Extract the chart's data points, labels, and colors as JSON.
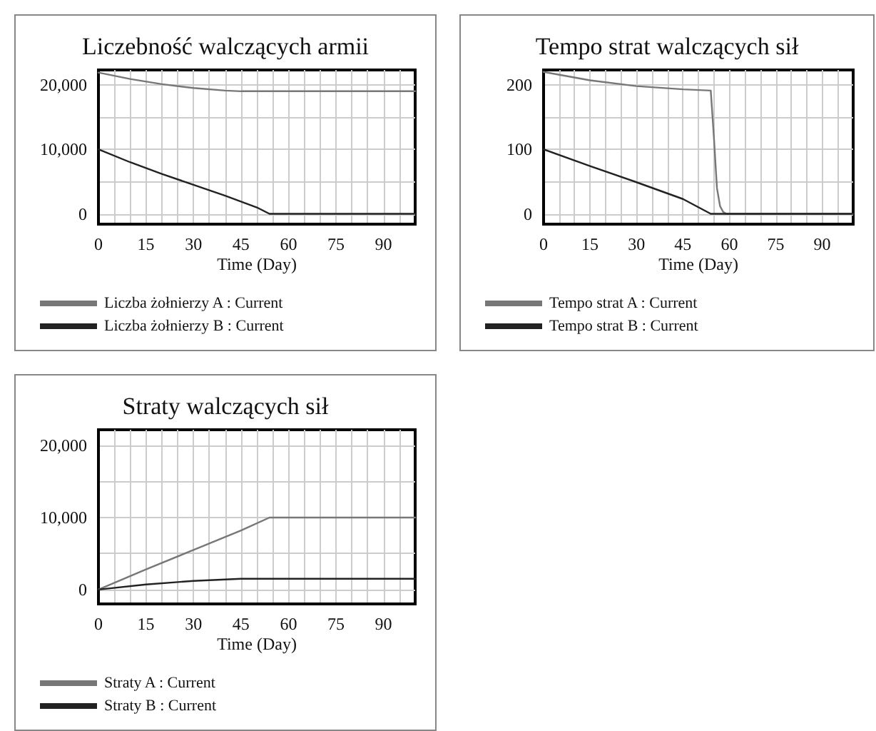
{
  "chart_data": [
    {
      "type": "line",
      "title": "Liczebność walczących armii",
      "xlabel": "Time (Day)",
      "xlim": [
        0,
        100
      ],
      "xticks": [
        0,
        {
          "value": 5,
          "label": null
        },
        {
          "value": 10,
          "label": null
        },
        15,
        {
          "value": 20,
          "label": null
        },
        {
          "value": 25,
          "label": null
        },
        30,
        {
          "value": 35,
          "label": null
        },
        {
          "value": 40,
          "label": null
        },
        45,
        {
          "value": 50,
          "label": null
        },
        {
          "value": 55,
          "label": null
        },
        60,
        {
          "value": 65,
          "label": null
        },
        {
          "value": 70,
          "label": null
        },
        75,
        {
          "value": 80,
          "label": null
        },
        {
          "value": 85,
          "label": null
        },
        90,
        {
          "value": 95,
          "label": null
        }
      ],
      "ylim": [
        -1600,
        22300
      ],
      "yticks": [
        0,
        {
          "value": 5000,
          "label": null
        },
        {
          "value": 10000,
          "label": "10,000"
        },
        {
          "value": 15000,
          "label": null
        },
        {
          "value": 20000,
          "label": "20,000"
        }
      ],
      "grid": true,
      "legend": "bottom",
      "marker": "none",
      "line_style": "solid",
      "series": [
        {
          "name": "Liczba żołnierzy A : Current",
          "color": "#777777",
          "x": [
            0,
            10,
            20,
            30,
            40,
            45,
            100
          ],
          "values": [
            21900,
            20900,
            20100,
            19500,
            19100,
            19000,
            19000
          ]
        },
        {
          "name": "Liczba żołnierzy B : Current",
          "color": "#222222",
          "x": [
            0,
            10,
            20,
            30,
            40,
            50,
            54,
            100
          ],
          "values": [
            10000,
            8000,
            6200,
            4500,
            2800,
            1000,
            0,
            0
          ]
        }
      ]
    },
    {
      "type": "line",
      "title": "Tempo strat walczących sił",
      "xlabel": "Time (Day)",
      "xlim": [
        0,
        100
      ],
      "xticks": [
        0,
        {
          "value": 5,
          "label": null
        },
        {
          "value": 10,
          "label": null
        },
        15,
        {
          "value": 20,
          "label": null
        },
        {
          "value": 25,
          "label": null
        },
        30,
        {
          "value": 35,
          "label": null
        },
        {
          "value": 40,
          "label": null
        },
        45,
        {
          "value": 50,
          "label": null
        },
        {
          "value": 55,
          "label": null
        },
        60,
        {
          "value": 65,
          "label": null
        },
        {
          "value": 70,
          "label": null
        },
        75,
        {
          "value": 80,
          "label": null
        },
        {
          "value": 85,
          "label": null
        },
        90,
        {
          "value": 95,
          "label": null
        }
      ],
      "ylim": [
        -16,
        223
      ],
      "yticks": [
        0,
        {
          "value": 50,
          "label": null
        },
        100,
        {
          "value": 150,
          "label": null
        },
        200
      ],
      "grid": true,
      "legend": "bottom",
      "marker": "none",
      "line_style": "solid",
      "series": [
        {
          "name": "Tempo strat A : Current",
          "color": "#777777",
          "x": [
            0,
            15,
            30,
            45,
            54,
            55,
            56,
            57,
            58,
            59,
            100
          ],
          "values": [
            220,
            207,
            198,
            193,
            191,
            120,
            40,
            12,
            3,
            0,
            0
          ]
        },
        {
          "name": "Tempo strat B : Current",
          "color": "#222222",
          "x": [
            0,
            15,
            30,
            45,
            54,
            100
          ],
          "values": [
            100,
            74,
            49,
            23,
            0,
            0
          ]
        }
      ]
    },
    {
      "type": "line",
      "title": "Straty walczących sił",
      "xlabel": "Time (Day)",
      "xlim": [
        0,
        100
      ],
      "xticks": [
        0,
        {
          "value": 5,
          "label": null
        },
        {
          "value": 10,
          "label": null
        },
        15,
        {
          "value": 20,
          "label": null
        },
        {
          "value": 25,
          "label": null
        },
        30,
        {
          "value": 35,
          "label": null
        },
        {
          "value": 40,
          "label": null
        },
        45,
        {
          "value": 50,
          "label": null
        },
        {
          "value": 55,
          "label": null
        },
        60,
        {
          "value": 65,
          "label": null
        },
        {
          "value": 70,
          "label": null
        },
        75,
        {
          "value": 80,
          "label": null
        },
        {
          "value": 85,
          "label": null
        },
        90,
        {
          "value": 95,
          "label": null
        }
      ],
      "ylim": [
        -2000,
        22200
      ],
      "yticks": [
        0,
        {
          "value": 5000,
          "label": null
        },
        {
          "value": 10000,
          "label": "10,000"
        },
        {
          "value": 15000,
          "label": null
        },
        {
          "value": 20000,
          "label": "20,000"
        }
      ],
      "grid": true,
      "legend": "bottom",
      "marker": "none",
      "line_style": "solid",
      "series": [
        {
          "name": "Straty A : Current",
          "color": "#777777",
          "x": [
            0,
            15,
            30,
            45,
            54,
            100
          ],
          "values": [
            0,
            2800,
            5500,
            8200,
            10000,
            10000
          ]
        },
        {
          "name": "Straty B : Current",
          "color": "#222222",
          "x": [
            0,
            15,
            30,
            45,
            100
          ],
          "values": [
            0,
            700,
            1200,
            1500,
            1500
          ]
        }
      ]
    }
  ]
}
